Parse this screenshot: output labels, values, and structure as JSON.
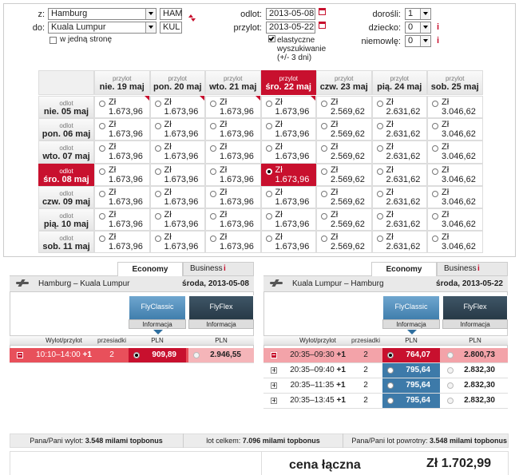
{
  "search": {
    "from_label": "z:",
    "from": "Hamburg",
    "from_code": "HAM",
    "to_label": "do:",
    "to": "Kuala Lumpur",
    "to_code": "KUL",
    "one_way": "w jedną stronę",
    "depart_label": "odlot:",
    "depart": "2013-05-08",
    "return_label": "przylot:",
    "return": "2013-05-22",
    "flexible": [
      "elastyczne",
      "wyszukiwanie",
      "(+/- 3 dni)"
    ],
    "adults_label": "dorośli:",
    "adults": "1",
    "children_label": "dziecko:",
    "children": "0",
    "infants_label": "niemowlę:",
    "infants": "0",
    "info": "i"
  },
  "matrix": {
    "col_label": "przylot",
    "columns": [
      "nie. 19 maj",
      "pon. 20 maj",
      "wto. 21 maj",
      "śro. 22 maj",
      "czw. 23 maj",
      "pią. 24 maj",
      "sob. 25 maj"
    ],
    "row_label": "odlot",
    "rows": [
      "nie. 05 maj",
      "pon. 06 maj",
      "wto. 07 maj",
      "śro. 08 maj",
      "czw. 09 maj",
      "pią. 10 maj",
      "sob. 11 maj"
    ],
    "currency": "Zł",
    "prices": [
      [
        "1.673,96",
        "1.673,96",
        "1.673,96",
        "1.673,96",
        "2.569,62",
        "2.631,62",
        "3.046,62"
      ],
      [
        "1.673,96",
        "1.673,96",
        "1.673,96",
        "1.673,96",
        "2.569,62",
        "2.631,62",
        "3.046,62"
      ],
      [
        "1.673,96",
        "1.673,96",
        "1.673,96",
        "1.673,96",
        "2.569,62",
        "2.631,62",
        "3.046,62"
      ],
      [
        "1.673,96",
        "1.673,96",
        "1.673,96",
        "1.673,96",
        "2.569,62",
        "2.631,62",
        "3.046,62"
      ],
      [
        "1.673,96",
        "1.673,96",
        "1.673,96",
        "1.673,96",
        "2.569,62",
        "2.631,62",
        "3.046,62"
      ],
      [
        "1.673,96",
        "1.673,96",
        "1.673,96",
        "1.673,96",
        "2.569,62",
        "2.631,62",
        "3.046,62"
      ],
      [
        "1.673,96",
        "1.673,96",
        "1.673,96",
        "1.673,96",
        "2.569,62",
        "2.631,62",
        "3.046,62"
      ]
    ]
  },
  "flights": [
    {
      "tabs": [
        "Economy",
        "Business"
      ],
      "route": "Hamburg – Kuala Lumpur",
      "date": "środa, 2013-05-08",
      "fares": [
        "FlyClassic",
        "FlyFlex"
      ],
      "fare_info": "Informacja",
      "headers": [
        "Wylot/przylot",
        "przesiadki",
        "PLN",
        "PLN"
      ],
      "rows": [
        {
          "time": "10:10–14:00",
          "plus": "+1",
          "stops": "2",
          "classic": "909,89",
          "flex": "2.946,55"
        }
      ]
    },
    {
      "tabs": [
        "Economy",
        "Business"
      ],
      "route": "Kuala Lumpur – Hamburg",
      "date": "środa, 2013-05-22",
      "fares": [
        "FlyClassic",
        "FlyFlex"
      ],
      "fare_info": "Informacja",
      "headers": [
        "Wylot/przylot",
        "przesiadki",
        "PLN",
        "PLN"
      ],
      "rows": [
        {
          "time": "20:35–09:30",
          "plus": "+1",
          "stops": "2",
          "classic": "764,07",
          "flex": "2.800,73"
        },
        {
          "time": "20:35–09:40",
          "plus": "+1",
          "stops": "2",
          "classic": "795,64",
          "flex": "2.832,30"
        },
        {
          "time": "20:35–11:35",
          "plus": "+1",
          "stops": "2",
          "classic": "795,64",
          "flex": "2.832,30"
        },
        {
          "time": "20:35–13:45",
          "plus": "+1",
          "stops": "2",
          "classic": "795,64",
          "flex": "2.832,30"
        }
      ]
    }
  ],
  "summary": [
    {
      "label": "Pana/Pani wylot:",
      "value": "3.548 milami topbonus"
    },
    {
      "label": "lot celkem:",
      "value": "7.096 milami topbonus"
    },
    {
      "label": "Pana/Pani lot powrotny:",
      "value": "3.548 milami topbonus"
    }
  ],
  "total": {
    "label": "cena łączna",
    "value": "Zł 1.702,99"
  }
}
